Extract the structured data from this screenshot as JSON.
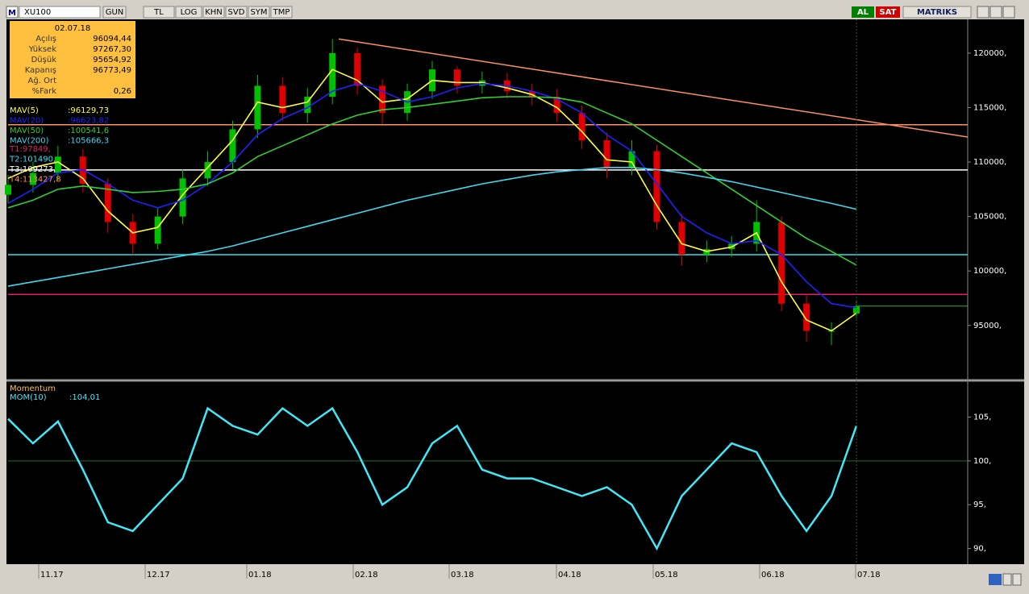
{
  "toolbar": {
    "logo": "M",
    "symbol": "XU100",
    "buttons": [
      "GUN",
      "TL",
      "LOG",
      "KHN",
      "SVD",
      "SYM",
      "TMP"
    ],
    "buy": "AL",
    "sell": "SAT",
    "brand": "MATRIKS"
  },
  "info_box": {
    "date": "02.07.18",
    "rows": [
      {
        "label": "Açılış",
        "value": "96094,44"
      },
      {
        "label": "Yüksek",
        "value": "97267,30"
      },
      {
        "label": "Düşük",
        "value": "95654,92"
      },
      {
        "label": "Kapanış",
        "value": "96773,49"
      },
      {
        "label": "Ağ. Ort",
        "value": ""
      },
      {
        "label": "%Fark",
        "value": "0,26"
      }
    ]
  },
  "x_labels": [
    "11.17",
    "12.17",
    "01.18",
    "02.18",
    "03.18",
    "04.18",
    "05.18",
    "06.18",
    "07.18"
  ],
  "chart_data": [
    {
      "type": "candlestick",
      "open": [
        107000,
        107900,
        109000,
        110500,
        108000,
        104500,
        102500,
        105000,
        108500,
        110000,
        113000,
        117000,
        114500,
        116000,
        120000,
        117000,
        114500,
        116500,
        118500,
        117000,
        117500,
        116500,
        116000,
        114500,
        112000,
        109500,
        111000,
        104500,
        101500,
        102000,
        102500,
        104500,
        97000,
        94500,
        96094.44
      ],
      "high": [
        108800,
        110000,
        111500,
        111200,
        108500,
        105200,
        105800,
        109300,
        111000,
        113800,
        118000,
        117800,
        116800,
        121300,
        120500,
        117600,
        117200,
        119300,
        118800,
        118300,
        118200,
        117200,
        116700,
        115200,
        112700,
        112000,
        111600,
        105200,
        102800,
        103200,
        106500,
        105000,
        97800,
        95300,
        97267.3
      ],
      "low": [
        106200,
        107200,
        108300,
        107200,
        103500,
        101500,
        102000,
        104300,
        107800,
        109300,
        112200,
        113800,
        113600,
        115300,
        116200,
        113500,
        113800,
        115800,
        116300,
        116300,
        115800,
        115200,
        113700,
        111200,
        108500,
        108800,
        103800,
        100500,
        100800,
        101300,
        101800,
        96300,
        93500,
        93200,
        95654.92
      ],
      "close": [
        107900,
        109000,
        110500,
        108000,
        104500,
        102500,
        105000,
        108500,
        110000,
        113000,
        117000,
        114500,
        116000,
        120000,
        117000,
        114500,
        116500,
        118500,
        117000,
        117500,
        116500,
        116000,
        114500,
        112000,
        109500,
        111000,
        104500,
        101500,
        102000,
        102500,
        104500,
        97000,
        94500,
        94500,
        96773.49
      ],
      "up_color": "#00c000",
      "down_color": "#e00000",
      "series": [
        {
          "name": "MAV(5)",
          "label": ":96129,73",
          "color": "#ffff40",
          "values": [
            108500,
            109500,
            110000,
            108500,
            105500,
            103500,
            104000,
            107000,
            109500,
            112000,
            115500,
            115000,
            115500,
            118500,
            117500,
            115500,
            115800,
            117500,
            117300,
            117300,
            116800,
            116200,
            115000,
            112800,
            110200,
            110000,
            106000,
            102500,
            101800,
            102200,
            103500,
            99000,
            95500,
            94500,
            96129.73
          ]
        },
        {
          "name": "MAV(20)",
          "label": ":96623,82",
          "color": "#2020ff",
          "values": [
            106200,
            107500,
            109000,
            109300,
            108000,
            106500,
            105800,
            106500,
            108000,
            110000,
            112500,
            114000,
            115000,
            116500,
            117200,
            116500,
            115500,
            116000,
            116800,
            117200,
            117000,
            116500,
            115800,
            114500,
            112500,
            111000,
            108000,
            105000,
            103500,
            102500,
            102800,
            101500,
            99000,
            97000,
            96623.82
          ]
        },
        {
          "name": "MAV(50)",
          "label": ":100541,6",
          "color": "#30d030",
          "values": [
            105800,
            106500,
            107500,
            107800,
            107500,
            107200,
            107300,
            107500,
            108000,
            109000,
            110500,
            111500,
            112500,
            113500,
            114300,
            114800,
            115000,
            115300,
            115600,
            115900,
            116000,
            116000,
            115900,
            115500,
            114500,
            113500,
            112000,
            110500,
            109000,
            107500,
            106000,
            104500,
            103000,
            101800,
            100541.6
          ]
        },
        {
          "name": "MAV(200)",
          "label": ":105666,3",
          "color": "#40d8f0",
          "values": [
            98600,
            99000,
            99400,
            99800,
            100200,
            100600,
            101000,
            101400,
            101800,
            102300,
            102900,
            103500,
            104100,
            104700,
            105300,
            105900,
            106500,
            107000,
            107500,
            108000,
            108400,
            108800,
            109100,
            109300,
            109500,
            109500,
            109300,
            109000,
            108600,
            108200,
            107700,
            107200,
            106700,
            106200,
            105666.3
          ]
        }
      ],
      "levels": [
        {
          "name": "T1",
          "label": "T1:97849,",
          "value": 97849,
          "color": "#e0206a"
        },
        {
          "name": "T2",
          "label": "T2:101490,",
          "value": 101490,
          "color": "#30e0f0"
        },
        {
          "name": "T3",
          "label": "T3:109273,",
          "value": 109273,
          "color": "#ffffff"
        },
        {
          "name": "T4",
          "label": "T4:113427,8",
          "value": 113427.8,
          "color": "#ff9060"
        }
      ],
      "trendline": {
        "start": 121300,
        "end": 112300,
        "color": "#ff9060"
      },
      "ylim": [
        90100,
        123100
      ],
      "yticks": [
        {
          "value": 95000,
          "label": "95000,"
        },
        {
          "value": 100000,
          "label": "100000,"
        },
        {
          "value": 105000,
          "label": "105000,"
        },
        {
          "value": 110000,
          "label": "110000,"
        },
        {
          "value": 115000,
          "label": "115000,"
        },
        {
          "value": 120000,
          "label": "120000,"
        }
      ]
    },
    {
      "type": "line",
      "title": "Momentum",
      "series": [
        {
          "name": "MOM(10)",
          "label": ":104,01",
          "color": "#40e8f8",
          "values": [
            104.8,
            102,
            104.5,
            99,
            93,
            92,
            95,
            98,
            106,
            104,
            103,
            106,
            104,
            106,
            101,
            95,
            97,
            102,
            104,
            99,
            98,
            98,
            97,
            96,
            97,
            95,
            90,
            96,
            99,
            102,
            101,
            96,
            92,
            96,
            104.01
          ]
        }
      ],
      "ylim": [
        88.4,
        109
      ],
      "yticks": [
        {
          "value": 90,
          "label": "90,"
        },
        {
          "value": 95,
          "label": "95,"
        },
        {
          "value": 100,
          "label": "100,"
        },
        {
          "value": 105,
          "label": "105,"
        }
      ],
      "reference": 100
    }
  ]
}
